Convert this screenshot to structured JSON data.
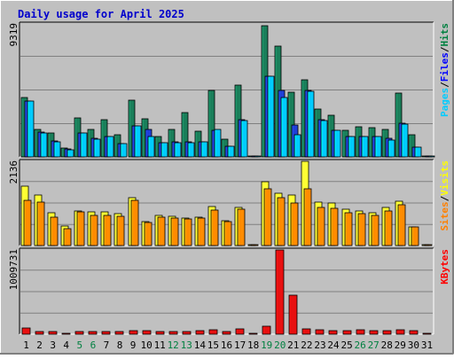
{
  "chart_data": {
    "type": "bar",
    "title": "Daily usage for April 2025",
    "x": [
      "1",
      "2",
      "3",
      "4",
      "5",
      "6",
      "7",
      "8",
      "9",
      "10",
      "11",
      "12",
      "13",
      "14",
      "15",
      "16",
      "17",
      "18",
      "19",
      "20",
      "21",
      "22",
      "23",
      "24",
      "25",
      "26",
      "27",
      "28",
      "29",
      "30",
      "31"
    ],
    "weekend_days": [
      "5",
      "6",
      "12",
      "13",
      "19",
      "20",
      "26",
      "27"
    ],
    "panels": [
      {
        "name": "hits-files-pages",
        "max_label": "9319",
        "ymax": 9319,
        "legend": [
          {
            "text": "Pages",
            "color": "#00ccff"
          },
          {
            "text": "/",
            "color": "#000000"
          },
          {
            "text": "Files",
            "color": "#0000ff"
          },
          {
            "text": "/",
            "color": "#000000"
          },
          {
            "text": "Hits",
            "color": "#008040"
          }
        ],
        "series": [
          {
            "name": "Hits",
            "color": "#1a7f5a",
            "values": [
              4150,
              1950,
              1700,
              650,
              2750,
              1900,
              2600,
              1550,
              4000,
              2650,
              1400,
              1950,
              3100,
              1800,
              4650,
              1250,
              5050,
              0,
              9200,
              7750,
              4550,
              5400,
              3350,
              2900,
              1850,
              2100,
              2050,
              1900,
              4500,
              1550,
              0
            ]
          },
          {
            "name": "Files",
            "color": "#1f3fd9",
            "values": [
              3900,
              1750,
              1100,
              550,
              1700,
              1300,
              1450,
              950,
              2200,
              1900,
              1000,
              1050,
              1050,
              1050,
              1850,
              750,
              2600,
              0,
              5650,
              4650,
              2250,
              4650,
              2600,
              1850,
              1400,
              1450,
              1450,
              1300,
              2350,
              700,
              0
            ]
          },
          {
            "name": "Pages",
            "color": "#00ccff",
            "values": [
              3900,
              1700,
              1050,
              500,
              1650,
              1250,
              1400,
              950,
              2150,
              1400,
              1000,
              1000,
              1000,
              1050,
              1950,
              750,
              2550,
              0,
              5650,
              4150,
              1550,
              4600,
              2550,
              1850,
              1400,
              1400,
              1400,
              1200,
              2300,
              700,
              0
            ]
          }
        ]
      },
      {
        "name": "visits-sites",
        "max_label": "2136",
        "ymax": 2136,
        "legend": [
          {
            "text": "Sites",
            "color": "#ff8000"
          },
          {
            "text": "/",
            "color": "#000000"
          },
          {
            "text": "Visits",
            "color": "#ffff00"
          }
        ],
        "series": [
          {
            "name": "Visits",
            "color": "#ffff33",
            "values": [
              1500,
              1275,
              825,
              500,
              875,
              850,
              850,
              800,
              1225,
              600,
              775,
              750,
              700,
              725,
              1000,
              625,
              975,
              0,
              1625,
              1325,
              1275,
              2136,
              1100,
              1075,
              925,
              875,
              825,
              975,
              1125,
              475,
              0
            ]
          },
          {
            "name": "Sites",
            "color": "#ff8c00",
            "values": [
              1150,
              1100,
              725,
              425,
              850,
              775,
              775,
              750,
              1150,
              575,
              725,
              700,
              675,
              700,
              900,
              600,
              925,
              0,
              1450,
              1225,
              1075,
              1450,
              975,
              950,
              825,
              800,
              775,
              875,
              1025,
              475,
              0
            ]
          }
        ]
      },
      {
        "name": "kbytes",
        "max_label": "1009731",
        "ymax": 1009731,
        "legend": [
          {
            "text": "KBytes",
            "color": "#ff0000"
          }
        ],
        "series": [
          {
            "name": "KBytes",
            "color": "#e81010",
            "values": [
              75000,
              35000,
              35000,
              15000,
              35000,
              30000,
              30000,
              35000,
              40000,
              40000,
              35000,
              35000,
              35000,
              40000,
              55000,
              35000,
              60000,
              0,
              95000,
              1009731,
              470000,
              65000,
              50000,
              40000,
              40000,
              55000,
              40000,
              40000,
              55000,
              45000,
              0
            ]
          }
        ]
      }
    ],
    "grid": true
  }
}
